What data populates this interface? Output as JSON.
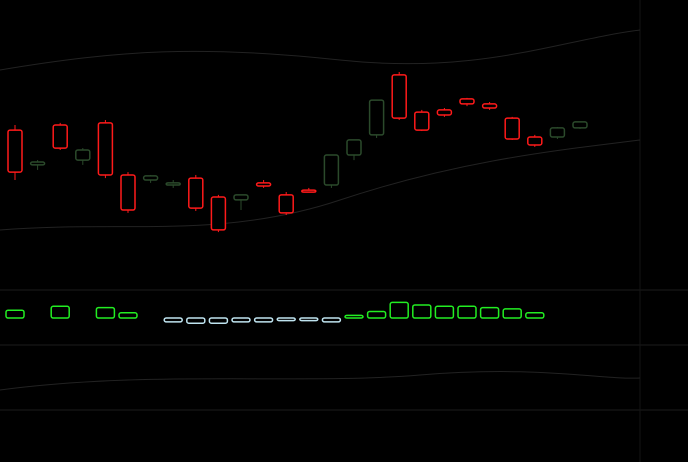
{
  "chart_data": [
    {
      "type": "candlestick",
      "open": [
        58.3,
        43.8,
        60.4,
        45.8,
        61.3,
        39.6,
        37.5,
        35.4,
        38.3,
        30.4,
        29.2,
        36.3,
        31.3,
        33.3,
        35.4,
        47.9,
        56.3,
        81.3,
        65.8,
        66.7,
        71.3,
        69.2,
        63.3,
        55.4,
        55.4,
        59.2
      ],
      "high": [
        60.4,
        45.8,
        61.3,
        50.8,
        62.5,
        40.8,
        39.6,
        37.5,
        39.6,
        31.3,
        31.3,
        37.5,
        32.5,
        34.2,
        47.9,
        54.2,
        70.8,
        82.5,
        66.7,
        67.5,
        71.7,
        70.0,
        63.8,
        56.3,
        59.6,
        61.7
      ],
      "low": [
        37.5,
        41.7,
        50.0,
        43.8,
        38.3,
        23.8,
        36.3,
        34.2,
        24.6,
        15.8,
        25.0,
        34.2,
        22.9,
        32.5,
        34.2,
        45.8,
        55.0,
        62.5,
        57.9,
        63.8,
        68.3,
        66.7,
        54.2,
        51.3,
        54.6,
        58.8
      ],
      "close": [
        40.8,
        45.0,
        50.8,
        50.0,
        39.6,
        25.0,
        39.2,
        36.3,
        25.8,
        16.7,
        31.3,
        35.0,
        23.8,
        32.9,
        47.9,
        54.2,
        70.8,
        63.3,
        58.3,
        64.6,
        69.2,
        67.5,
        54.6,
        52.1,
        59.2,
        61.7
      ],
      "up_color": "#2b4a2b",
      "down_color": "#ff1a1a",
      "ylim": [
        0,
        100
      ]
    },
    {
      "type": "bar",
      "values": [
        6,
        0,
        9,
        0,
        8,
        4,
        0,
        -3,
        -4,
        -4,
        -3,
        -3,
        -2,
        -2,
        -3,
        2,
        5,
        12,
        10,
        9,
        9,
        8,
        7,
        4,
        0,
        0
      ],
      "pos_color": "#22ee22",
      "neg_color": "#bfe4f0",
      "ylim": [
        -20,
        20
      ]
    }
  ]
}
